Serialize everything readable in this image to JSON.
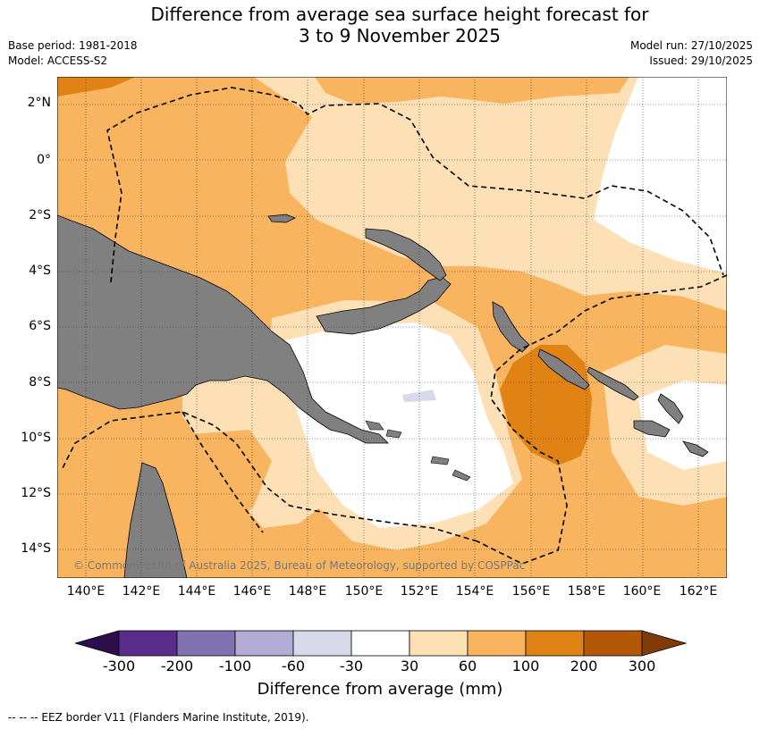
{
  "title_line1": "Difference from average sea surface height forecast for",
  "title_line2": "3 to 9 November 2025",
  "base_period": "Base period: 1981-2018",
  "model": "Model: ACCESS-S2",
  "model_run": "Model run: 27/10/2025",
  "issued": "Issued: 29/10/2025",
  "lat_labels": [
    "2°N",
    "0°",
    "2°S",
    "4°S",
    "6°S",
    "8°S",
    "10°S",
    "12°S",
    "14°S"
  ],
  "lon_labels": [
    "140°E",
    "142°E",
    "144°E",
    "146°E",
    "148°E",
    "150°E",
    "152°E",
    "154°E",
    "156°E",
    "158°E",
    "160°E",
    "162°E"
  ],
  "copyright": "© Commonwealth of Australia 2025, Bureau of Meteorology, supported by COSPPac",
  "colorbar": {
    "ticks": [
      "-300",
      "-200",
      "-100",
      "-60",
      "-30",
      "30",
      "60",
      "100",
      "200",
      "300"
    ],
    "colors": [
      "#2e0d4c",
      "#5a2d8c",
      "#8171ae",
      "#b2abd3",
      "#d8daeb",
      "#ffffff",
      "#fee0b6",
      "#f9b45f",
      "#e08214",
      "#b35806",
      "#7f3b08"
    ],
    "title": "Difference from average (mm)"
  },
  "legend_note": "--  --  -- EEZ border V11 (Flanders Marine Institute, 2019).",
  "palette": {
    "land": "#808080",
    "light_orange": "#fee0b6",
    "orange": "#f9b45f",
    "dark_orange": "#e08214"
  }
}
